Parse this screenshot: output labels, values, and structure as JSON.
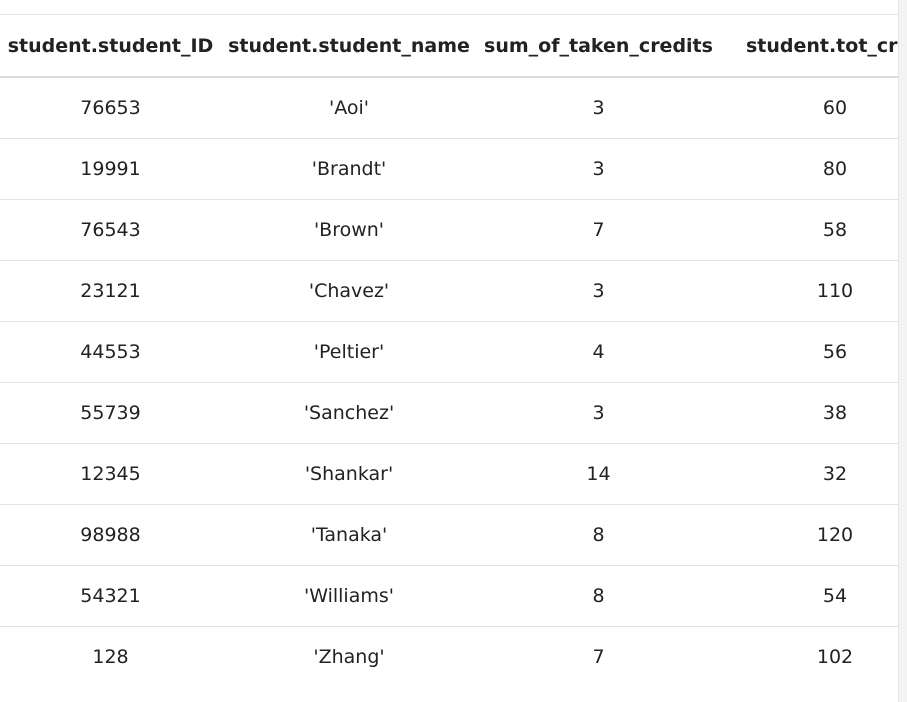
{
  "table": {
    "columns": [
      "student.student_ID",
      "student.student_name",
      "sum_of_taken_credits",
      "student.tot_cred"
    ],
    "rows": [
      [
        "76653",
        "'Aoi'",
        "3",
        "60"
      ],
      [
        "19991",
        "'Brandt'",
        "3",
        "80"
      ],
      [
        "76543",
        "'Brown'",
        "7",
        "58"
      ],
      [
        "23121",
        "'Chavez'",
        "3",
        "110"
      ],
      [
        "44553",
        "'Peltier'",
        "4",
        "56"
      ],
      [
        "55739",
        "'Sanchez'",
        "3",
        "38"
      ],
      [
        "12345",
        "'Shankar'",
        "14",
        "32"
      ],
      [
        "98988",
        "'Tanaka'",
        "8",
        "120"
      ],
      [
        "54321",
        "'Williams'",
        "8",
        "54"
      ],
      [
        "128",
        "'Zhang'",
        "7",
        "102"
      ]
    ]
  }
}
